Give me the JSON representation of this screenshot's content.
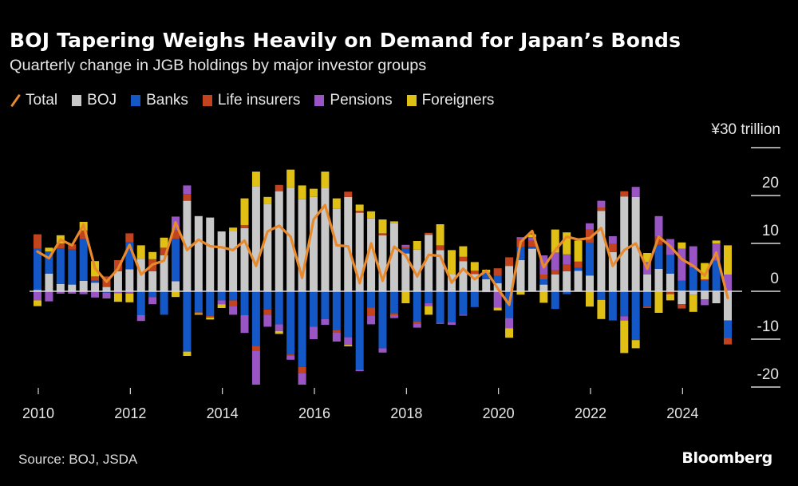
{
  "header": {
    "title": "BOJ Tapering Weighs Heavily on Demand for Japan’s Bonds",
    "subtitle": "Quarterly change in JGB holdings by major investor groups"
  },
  "legend": [
    {
      "key": "total",
      "label": "Total",
      "color": "#e8892b",
      "kind": "line"
    },
    {
      "key": "boj",
      "label": "BOJ",
      "color": "#c8c8c8",
      "kind": "box"
    },
    {
      "key": "banks",
      "label": "Banks",
      "color": "#1458c8",
      "kind": "box"
    },
    {
      "key": "life",
      "label": "Life insurers",
      "color": "#c2441e",
      "kind": "box"
    },
    {
      "key": "pensions",
      "label": "Pensions",
      "color": "#9a55c4",
      "kind": "box"
    },
    {
      "key": "foreigners",
      "label": "Foreigners",
      "color": "#e0c014",
      "kind": "box"
    }
  ],
  "footer": {
    "source": "Source: BOJ, JSDA",
    "brand": "Bloomberg"
  },
  "chart_data": {
    "type": "bar",
    "stacked": true,
    "title": "BOJ Tapering Weighs Heavily on Demand for Japan’s Bonds",
    "subtitle": "Quarterly change in JGB holdings by major investor groups",
    "xlabel": "",
    "ylabel": "¥30 trillion",
    "unit_label": "¥30 trillion",
    "ylim": [
      -20,
      30
    ],
    "yticks": [
      30,
      20,
      10,
      0,
      -10,
      -20
    ],
    "ytick_labels": [
      "¥30 trillion",
      "20",
      "10",
      "0",
      "-10",
      "-20"
    ],
    "xticks": [
      "2010",
      "2012",
      "2014",
      "2016",
      "2018",
      "2020",
      "2022",
      "2024"
    ],
    "x_start": "2010 Q1",
    "x_end": "2025 Q1",
    "legend_position": "top-left",
    "grid": false,
    "categories": [
      "2010Q1",
      "2010Q2",
      "2010Q3",
      "2010Q4",
      "2011Q1",
      "2011Q2",
      "2011Q3",
      "2011Q4",
      "2012Q1",
      "2012Q2",
      "2012Q3",
      "2012Q4",
      "2013Q1",
      "2013Q2",
      "2013Q3",
      "2013Q4",
      "2014Q1",
      "2014Q2",
      "2014Q3",
      "2014Q4",
      "2015Q1",
      "2015Q2",
      "2015Q3",
      "2015Q4",
      "2016Q1",
      "2016Q2",
      "2016Q3",
      "2016Q4",
      "2017Q1",
      "2017Q2",
      "2017Q3",
      "2017Q4",
      "2018Q1",
      "2018Q2",
      "2018Q3",
      "2018Q4",
      "2019Q1",
      "2019Q2",
      "2019Q3",
      "2019Q4",
      "2020Q1",
      "2020Q2",
      "2020Q3",
      "2020Q4",
      "2021Q1",
      "2021Q2",
      "2021Q3",
      "2021Q4",
      "2022Q1",
      "2022Q2",
      "2022Q3",
      "2022Q4",
      "2023Q1",
      "2023Q2",
      "2023Q3",
      "2023Q4",
      "2024Q1",
      "2024Q2",
      "2024Q3",
      "2024Q4",
      "2025Q1"
    ],
    "series": [
      {
        "name": "BOJ",
        "key": "boj",
        "values": [
          0.3,
          3.7,
          1.5,
          1.4,
          2.2,
          1.8,
          0.9,
          4.2,
          4.6,
          6.8,
          4.2,
          7.5,
          2.1,
          18.9,
          15.7,
          15.4,
          12.5,
          12.5,
          13.2,
          21.9,
          18.3,
          20.9,
          21.7,
          19.2,
          19.7,
          21.5,
          17.2,
          19.7,
          16.4,
          15.2,
          11.7,
          14.2,
          7.9,
          8.7,
          11.8,
          8.6,
          3.5,
          6.3,
          3.6,
          2.5,
          1.7,
          5.3,
          6.5,
          8.9,
          1.4,
          3.5,
          4.2,
          4.3,
          3.3,
          16.8,
          8.2,
          19.8,
          19.7,
          3.5,
          4.7,
          3.7,
          -2.7,
          -0.7,
          -1.7,
          -2.5,
          -6.1
        ]
      },
      {
        "name": "Banks",
        "key": "banks",
        "values": [
          8.6,
          4.6,
          7.5,
          7.3,
          8.7,
          0.4,
          -0.3,
          0,
          5.6,
          -5.0,
          -1.2,
          -4.9,
          8.9,
          -12.6,
          -4.3,
          -5.1,
          -1.9,
          -1.9,
          -5.0,
          -11.4,
          -3.8,
          -6.9,
          -13.2,
          -15.8,
          -7.4,
          -5.8,
          -8.1,
          -9.6,
          -16.4,
          -3.4,
          -11.9,
          -4.6,
          1.1,
          -6.3,
          -2.5,
          -6.6,
          -6.5,
          -4.9,
          -3.3,
          1.4,
          1.5,
          -5.6,
          2.7,
          0.4,
          1.1,
          -3.7,
          -0.6,
          0.6,
          6.8,
          -1.8,
          -6.1,
          -5.2,
          -10.2,
          -3.2,
          5.0,
          3.9,
          2.2,
          5.0,
          2.2,
          6.4,
          -3.6
        ]
      },
      {
        "name": "Life insurers",
        "key": "life",
        "values": [
          3.0,
          0,
          1.0,
          1.1,
          1.8,
          0.9,
          2.2,
          2.3,
          1.9,
          0,
          2.5,
          1.6,
          1.7,
          1.4,
          -0.3,
          -0.4,
          0,
          -1.2,
          0.6,
          -1.1,
          -1.1,
          1.3,
          -0.3,
          -1.3,
          0,
          0,
          -0.5,
          1.1,
          0.4,
          -1.7,
          0.4,
          -0.4,
          0.2,
          -0.4,
          0.4,
          1.0,
          0,
          0.9,
          0.7,
          0,
          1.6,
          1.8,
          1.7,
          1.3,
          1.0,
          0.9,
          1.4,
          1.3,
          2.8,
          0.7,
          1.7,
          1.1,
          0,
          -0.3,
          1.7,
          -0.6,
          -0.9,
          0,
          0.3,
          0,
          -1.4
        ]
      },
      {
        "name": "Pensions",
        "key": "pensions",
        "values": [
          -1.9,
          -2.1,
          -0.5,
          -0.5,
          -0.6,
          -1.3,
          -1.2,
          -0.4,
          -0.5,
          -1.2,
          -1.5,
          0,
          2.9,
          1.8,
          0,
          0,
          -0.8,
          -1.8,
          -3.7,
          -7.0,
          -2.5,
          -1.4,
          -0.8,
          -2.4,
          -2.6,
          -1.2,
          -1.9,
          -1.6,
          -0.3,
          -1.8,
          -0.9,
          -0.6,
          0.5,
          -0.9,
          -0.6,
          -0.2,
          -0.5,
          -0.2,
          0,
          -0.2,
          -3.4,
          -2.1,
          0.4,
          0.7,
          4.0,
          3.7,
          2.1,
          0,
          1.3,
          1.4,
          1.6,
          -0.9,
          2.1,
          2.6,
          4.3,
          3.3,
          6.7,
          4.4,
          -1.2,
          3.6,
          3.5
        ]
      },
      {
        "name": "Foreigners",
        "key": "foreigners",
        "values": [
          -1.2,
          0.8,
          1.7,
          0,
          1.8,
          3.2,
          0,
          -1.8,
          -1.8,
          2.8,
          1.5,
          2.1,
          -1.2,
          -0.9,
          -0.3,
          -0.4,
          -0.8,
          0.8,
          5.6,
          3.1,
          1.4,
          -0.6,
          3.7,
          2.9,
          1.7,
          3.5,
          2.2,
          -0.3,
          1.3,
          1.5,
          2.9,
          0.4,
          -2.5,
          1.8,
          -1.8,
          4.4,
          5.1,
          2.2,
          1.8,
          0.6,
          -0.6,
          -2.0,
          -0.7,
          0.6,
          -2.4,
          4.8,
          4.6,
          4.4,
          -3.2,
          -4.0,
          0,
          -6.8,
          -1.7,
          1.9,
          -4.5,
          -1.3,
          1.3,
          -3.6,
          3.4,
          0.6,
          6.1
        ]
      },
      {
        "name": "Total",
        "key": "total",
        "type": "line",
        "values": [
          8.3,
          6.9,
          10.8,
          9.6,
          13.9,
          4.8,
          2.0,
          4.7,
          9.7,
          3.5,
          5.6,
          6.4,
          14.4,
          8.6,
          10.8,
          9.4,
          9.2,
          8.6,
          10.6,
          5.3,
          12.5,
          13.7,
          11.4,
          2.8,
          15.0,
          18.0,
          9.6,
          9.4,
          1.7,
          10.0,
          2.2,
          9.3,
          7.5,
          3.1,
          7.6,
          7.4,
          1.8,
          4.7,
          2.5,
          4.3,
          0.6,
          -2.8,
          10.3,
          12.6,
          5.0,
          8.6,
          11.4,
          10.8,
          11.1,
          13.2,
          5.3,
          8.6,
          10.0,
          4.7,
          11.4,
          9.4,
          6.7,
          5.3,
          3.3,
          8.1,
          -1.4
        ]
      }
    ]
  }
}
